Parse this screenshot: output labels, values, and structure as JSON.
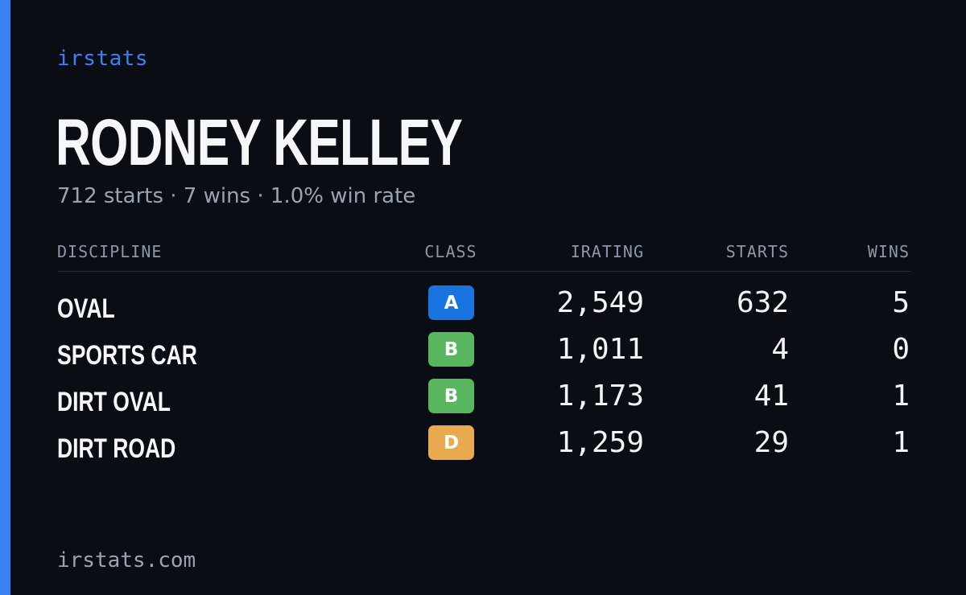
{
  "brand": {
    "name": "irstats",
    "accent_color": "#3b82f6"
  },
  "player": {
    "name": "RODNEY KELLEY",
    "summary": "712 starts · 7 wins · 1.0% win rate"
  },
  "table": {
    "headers": {
      "discipline": "DISCIPLINE",
      "class": "CLASS",
      "irating": "IRATING",
      "starts": "STARTS",
      "wins": "WINS"
    },
    "rows": [
      {
        "discipline": "OVAL",
        "class": "A",
        "class_color": "#1a74e0",
        "irating": "2,549",
        "starts": "632",
        "wins": "5"
      },
      {
        "discipline": "SPORTS CAR",
        "class": "B",
        "class_color": "#57b65e",
        "irating": "1,011",
        "starts": "4",
        "wins": "0"
      },
      {
        "discipline": "DIRT OVAL",
        "class": "B",
        "class_color": "#57b65e",
        "irating": "1,173",
        "starts": "41",
        "wins": "1"
      },
      {
        "discipline": "DIRT ROAD",
        "class": "D",
        "class_color": "#e8a94f",
        "irating": "1,259",
        "starts": "29",
        "wins": "1"
      }
    ]
  },
  "footer": {
    "url": "irstats.com"
  }
}
